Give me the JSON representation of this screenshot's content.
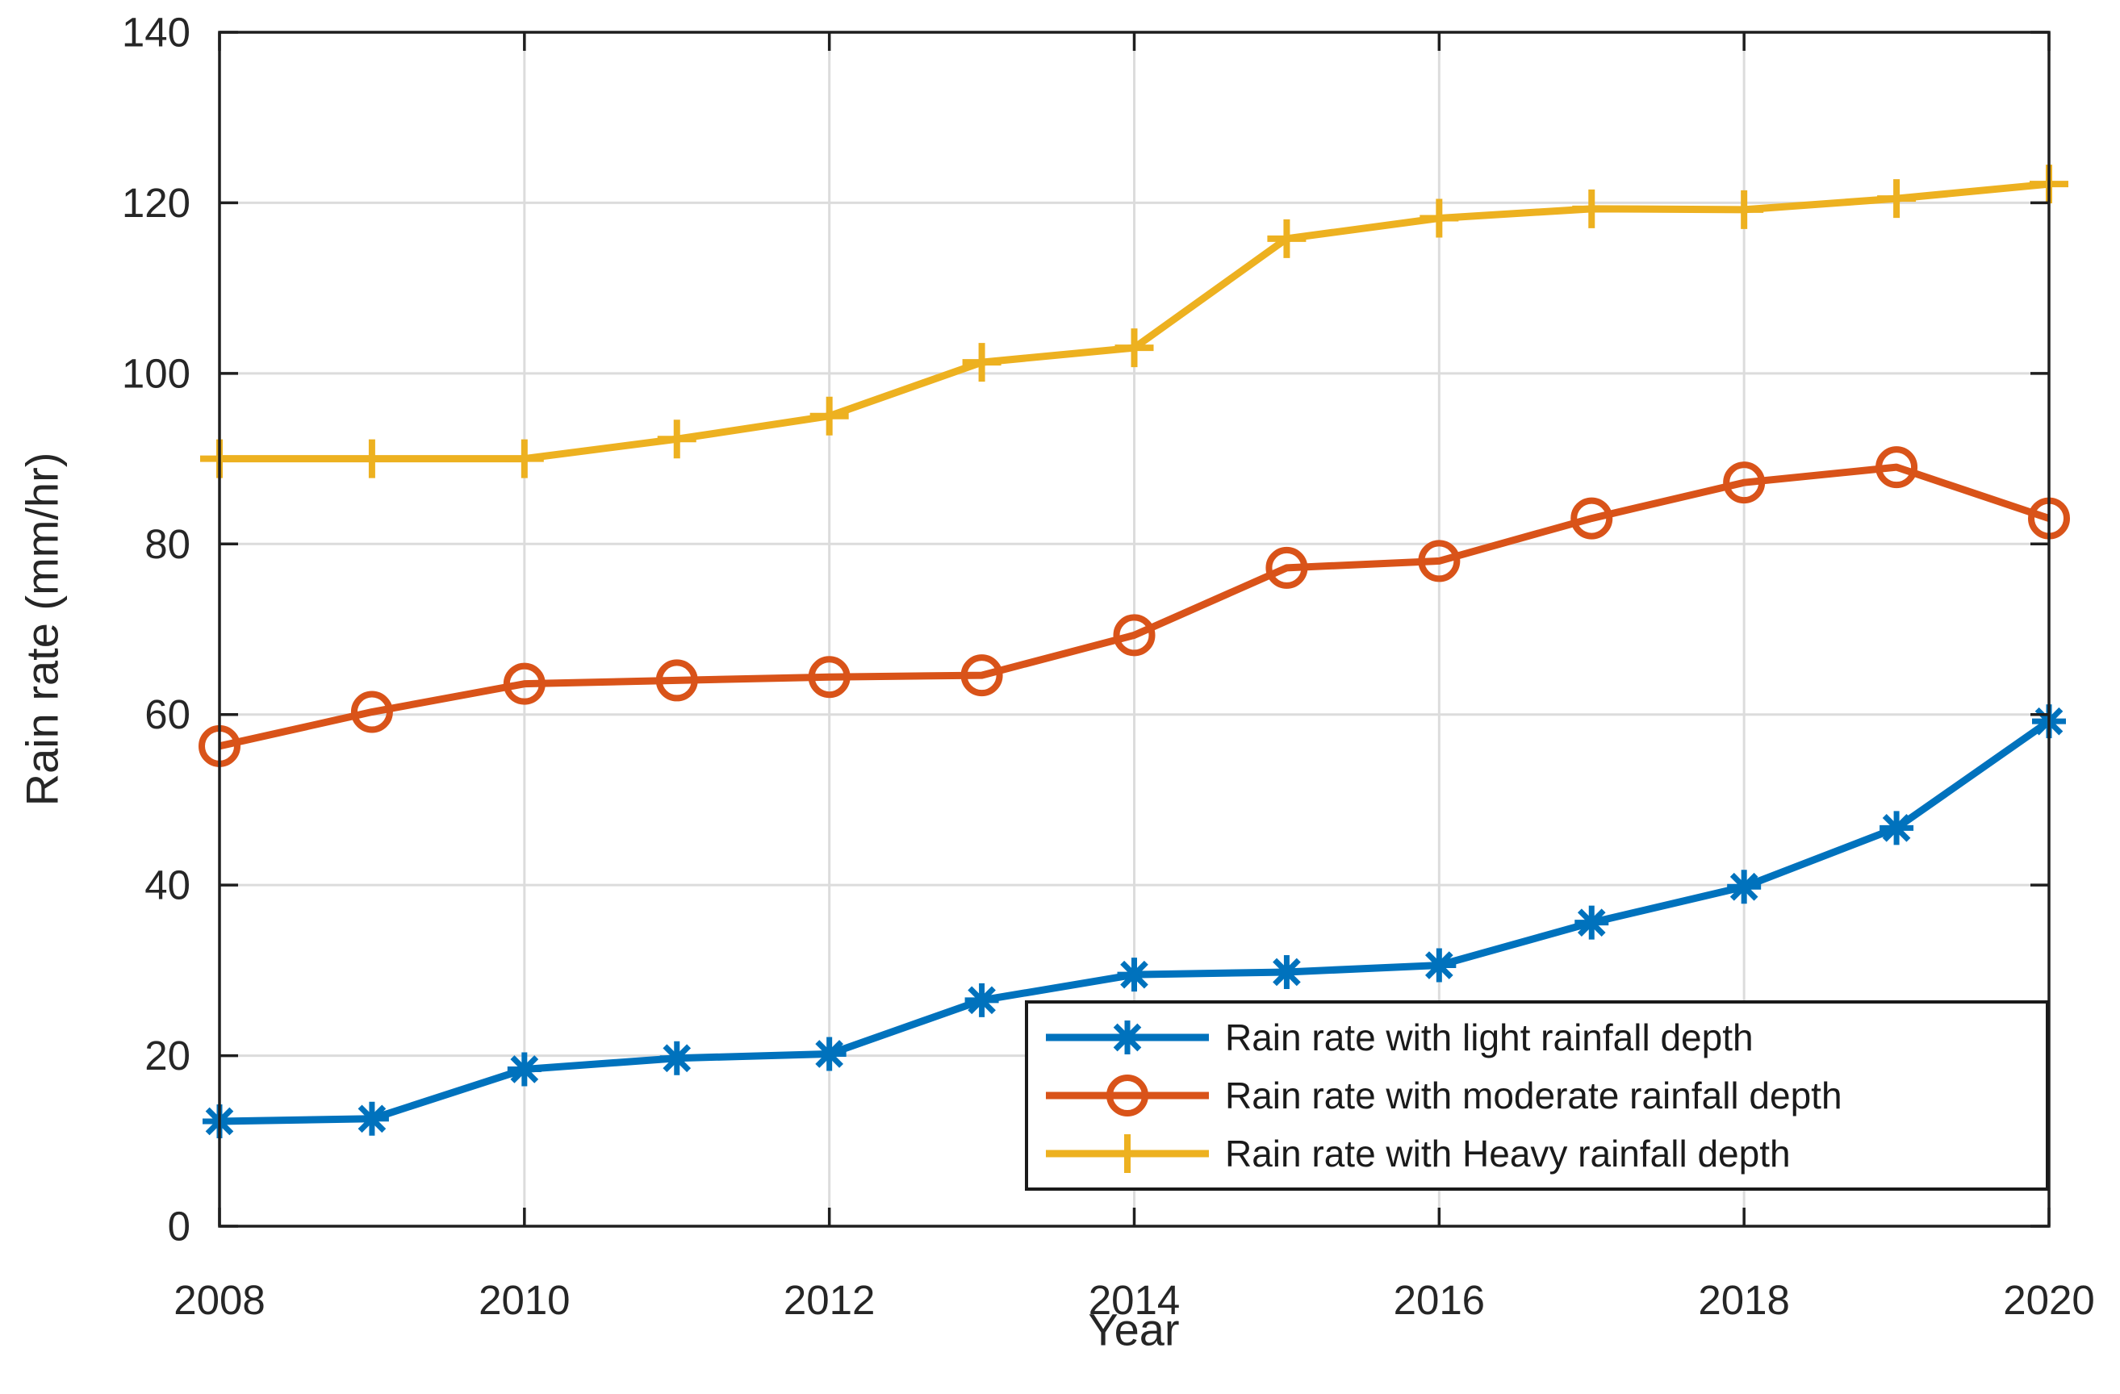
{
  "chart_data": {
    "type": "line",
    "title": "",
    "xlabel": "Year",
    "ylabel": "Rain rate (mm/hr)",
    "x": [
      2008,
      2009,
      2010,
      2011,
      2012,
      2013,
      2014,
      2015,
      2016,
      2017,
      2018,
      2019,
      2020
    ],
    "xlim": [
      2008,
      2020
    ],
    "ylim": [
      0,
      140
    ],
    "xticks": [
      2008,
      2010,
      2012,
      2014,
      2016,
      2018,
      2020
    ],
    "yticks": [
      0,
      20,
      40,
      60,
      80,
      100,
      120,
      140
    ],
    "grid": true,
    "legend_position": "inside-bottom-right",
    "series": [
      {
        "name": "Rain rate with light rainfall depth",
        "color": "#0072BD",
        "marker": "asterisk",
        "values": [
          12.3,
          12.6,
          18.4,
          19.7,
          20.2,
          26.5,
          29.5,
          29.8,
          30.6,
          35.6,
          39.8,
          46.7,
          59.2
        ]
      },
      {
        "name": "Rain rate with moderate rainfall depth",
        "color": "#D95319",
        "marker": "circle",
        "values": [
          56.3,
          60.3,
          63.6,
          64.0,
          64.4,
          64.6,
          69.3,
          77.2,
          78.0,
          83.0,
          87.2,
          89.0,
          83.0
        ]
      },
      {
        "name": "Rain rate with Heavy rainfall depth",
        "color": "#EDB120",
        "marker": "plus",
        "values": [
          90.0,
          90.0,
          90.0,
          92.3,
          95.0,
          101.3,
          103.0,
          115.8,
          118.2,
          119.3,
          119.2,
          120.5,
          122.2
        ]
      }
    ],
    "colors": {
      "grid": "#dcdcdc",
      "axis": "#1f1f1f",
      "text": "#262626",
      "background": "#ffffff"
    }
  }
}
